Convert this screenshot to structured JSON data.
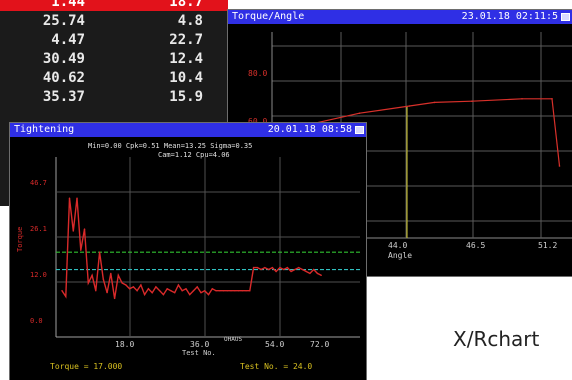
{
  "table": {
    "rows": [
      [
        "1.44",
        "18.7"
      ],
      [
        "25.74",
        "4.8"
      ],
      [
        "4.47",
        "22.7"
      ],
      [
        "30.49",
        "12.4"
      ],
      [
        "40.62",
        "10.4"
      ],
      [
        "35.37",
        "15.9"
      ]
    ],
    "highlight_row_color": "#e2121b"
  },
  "torque_window": {
    "title": "Torque/Angle",
    "timestamp": "23.01.18 02:11:5",
    "y_ticks": [
      "80.0",
      "60.0"
    ],
    "x_ticks": [
      "44.0",
      "46.5",
      "51.2"
    ],
    "x_label": "Angle",
    "chart_data": {
      "type": "line",
      "x": [
        40.5,
        43.5,
        45.5,
        46.5,
        48.0,
        50.0,
        51.2,
        51.5
      ],
      "y": [
        45,
        52,
        55,
        56.5,
        57,
        58,
        58,
        30
      ],
      "marker_x": 45.4,
      "colors": {
        "curve": "#d8302a",
        "marker": "#d8d030",
        "grid": "#5a5a5a"
      }
    }
  },
  "tightening_window": {
    "title": "Tightening",
    "timestamp": "20.01.18 08:58",
    "stats_line1": "Min=0.00 Cpk=0.51 Mean=13.25 Sigma=0.35",
    "stats_line2": "Cam=1.12 Cpu=4.06",
    "y_ticks": [
      "46.7",
      "26.1",
      "12.0",
      "0.0"
    ],
    "y_label": "Torque",
    "x_ticks": [
      "18.0",
      "36.0",
      "54.0",
      "72.0"
    ],
    "x_label": "Test No.",
    "x_annotation": "OHAUS",
    "footer_left": "Torque = 17.000",
    "footer_right": "Test No. = 24.0",
    "chart_data": {
      "type": "line",
      "series": [
        {
          "values": [
            12.0,
            10.5,
            36.0,
            27.5,
            36.0,
            22.5,
            28.0,
            14.0,
            16.0,
            12.0,
            22.0,
            15.0,
            11.5,
            16.5,
            10.0,
            16.0,
            14.0,
            13.5,
            12.5,
            13.0,
            12.0,
            13.5,
            11.0,
            12.5,
            11.5,
            13.0,
            12.0,
            11.0,
            12.5,
            12.0,
            11.5,
            13.5,
            12.0,
            12.5,
            11.0,
            12.0,
            13.0,
            11.5,
            12.0,
            11.0,
            12.5,
            12.0,
            12.0,
            12.0,
            12.0,
            12.0,
            12.0,
            12.0,
            12.0,
            12.0,
            12.0,
            18.0,
            18.0,
            17.5,
            18.0,
            17.5,
            18.0,
            17.0,
            18.0,
            17.5,
            18.0,
            17.0,
            17.5,
            18.0,
            17.5,
            17.0,
            16.5,
            17.5,
            16.5,
            16.0
          ]
        }
      ],
      "ylim": [
        0.0,
        46.7
      ],
      "xlim": [
        0,
        78
      ],
      "upper_limit": 22.0,
      "lower_limit": 17.5,
      "colors": {
        "series": "#d92a2a",
        "upper_limit": "#30c030",
        "lower_limit": "#30c0c0",
        "grid": "#505050"
      }
    }
  },
  "footer": {
    "caption": "X/Rchart"
  }
}
